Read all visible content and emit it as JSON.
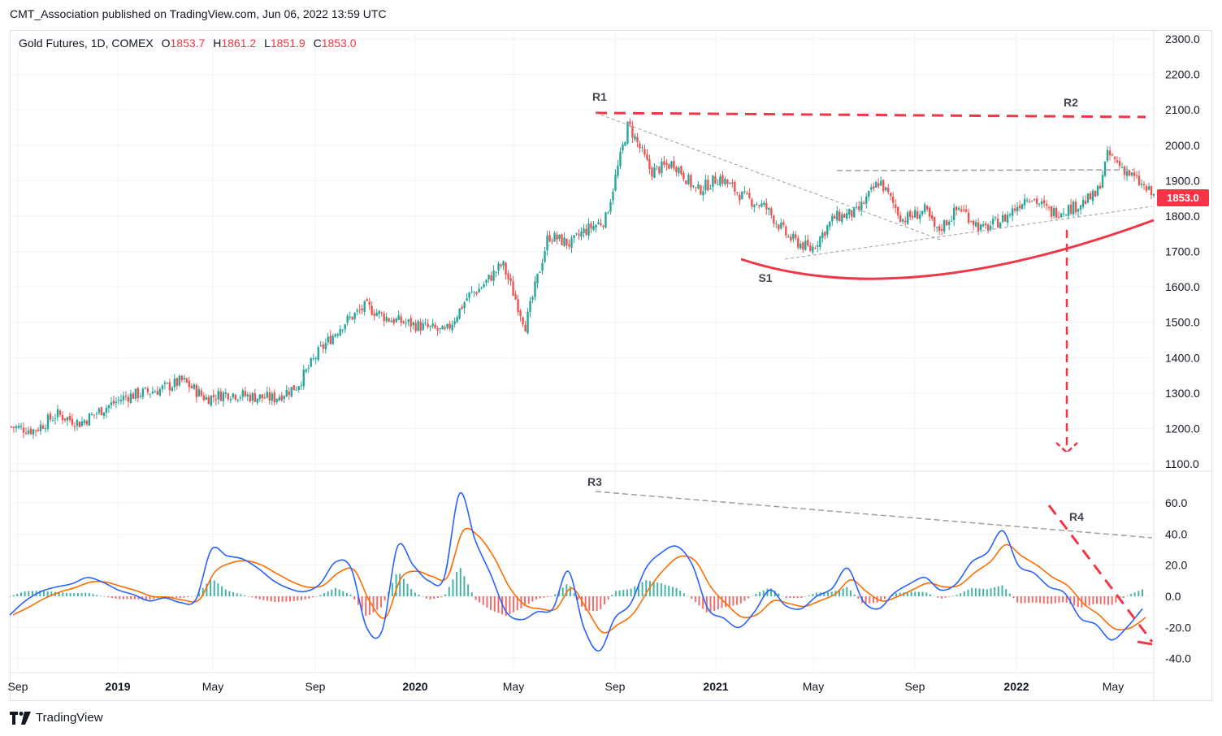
{
  "header": {
    "text": "CMT_Association published on TradingView.com, Jun 06, 2022 13:59 UTC"
  },
  "legend": {
    "symbol": "Gold Futures, 1D, COMEX",
    "o_label": "O",
    "o": "1853.7",
    "h_label": "H",
    "h": "1861.2",
    "l_label": "L",
    "l": "1851.9",
    "c_label": "C",
    "c": "1853.0"
  },
  "footer": {
    "brand": "TradingView"
  },
  "colors": {
    "up": "#26a69a",
    "down": "#ef5350",
    "annotation_red": "#f23645",
    "macd_line": "#2962ff",
    "signal_line": "#ff6d00",
    "trend_gray": "#9e9e9e"
  },
  "chart_data": [
    {
      "type": "candlestick",
      "title": "",
      "price_axis": {
        "ticks": [
          "2300.0",
          "2200.0",
          "2100.0",
          "2000.0",
          "1900.0",
          "1800.0",
          "1700.0",
          "1600.0",
          "1500.0",
          "1400.0",
          "1300.0",
          "1200.0",
          "1100.0"
        ],
        "ylim": [
          1080,
          2330
        ]
      },
      "last_price": "1853.0",
      "x_axis": {
        "ticks": [
          "Sep",
          "2019",
          "May",
          "Sep",
          "2020",
          "May",
          "Sep",
          "2021",
          "May",
          "Sep",
          "2022",
          "May"
        ],
        "bold_ticks": [
          "2019",
          "2020",
          "2021",
          "2022"
        ]
      },
      "price_series": {
        "t": [
          0,
          2,
          4,
          6,
          8,
          10,
          13,
          15,
          17,
          19,
          21,
          23,
          25,
          27,
          29,
          31,
          33,
          35,
          37,
          38,
          40,
          41,
          43,
          45,
          47,
          49,
          50,
          52,
          54,
          56,
          58,
          60,
          62,
          64,
          66,
          68,
          70,
          72,
          74,
          76,
          78,
          80,
          81,
          83,
          85,
          87,
          89,
          91,
          93,
          95,
          96,
          98,
          100
        ],
        "close": [
          1205,
          1195,
          1240,
          1215,
          1255,
          1290,
          1310,
          1335,
          1285,
          1300,
          1290,
          1285,
          1320,
          1420,
          1495,
          1545,
          1510,
          1495,
          1480,
          1470,
          1575,
          1595,
          1665,
          1490,
          1745,
          1720,
          1755,
          1790,
          2060,
          1925,
          1950,
          1870,
          1910,
          1855,
          1825,
          1740,
          1705,
          1795,
          1810,
          1900,
          1790,
          1815,
          1755,
          1825,
          1760,
          1795,
          1860,
          1810,
          1825,
          1860,
          1975,
          1915,
          1855
        ]
      },
      "annotations": [
        "R1",
        "R2",
        "S1"
      ]
    },
    {
      "type": "macd",
      "axis": {
        "ticks": [
          "60.0",
          "40.0",
          "20.0",
          "0.0",
          "-20.0",
          "-40.0"
        ],
        "ylim": [
          -45,
          70
        ]
      },
      "macd_values": [
        -12,
        -3,
        3,
        6,
        8,
        12,
        9,
        4,
        1,
        -3,
        -1,
        -4,
        -2,
        30,
        26,
        24,
        18,
        10,
        5,
        3,
        8,
        22,
        18,
        -20,
        -22,
        32,
        20,
        10,
        12,
        66,
        36,
        14,
        -10,
        -15,
        -10,
        -8,
        16,
        -20,
        -35,
        -14,
        -5,
        18,
        28,
        32,
        20,
        -8,
        -14,
        -20,
        -10,
        4,
        -6,
        -8,
        0,
        5,
        18,
        -3,
        -8,
        2,
        8,
        12,
        4,
        8,
        22,
        28,
        42,
        20,
        15,
        6,
        2,
        -14,
        -18,
        -28,
        -20,
        -8
      ],
      "annotations": [
        "R3",
        "R4"
      ]
    }
  ]
}
